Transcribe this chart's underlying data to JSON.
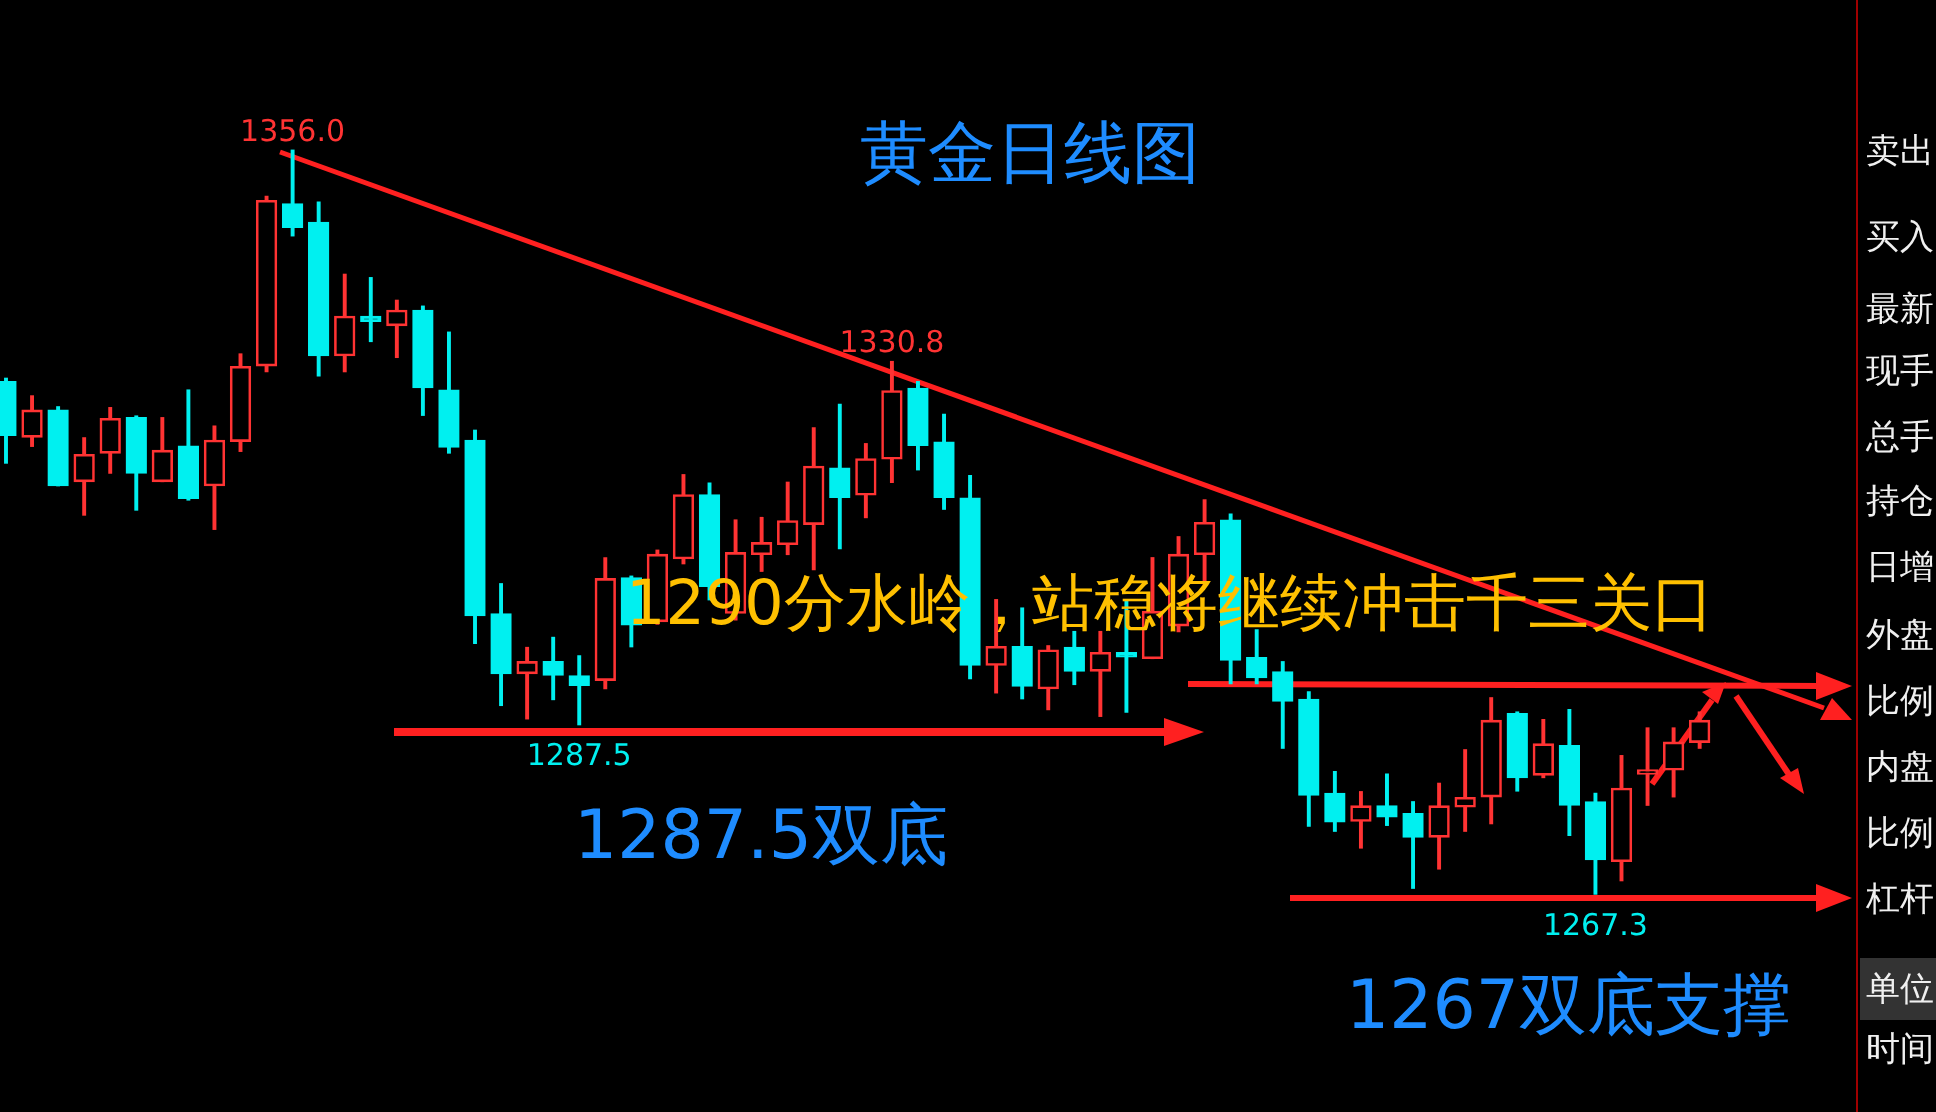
{
  "chart_data": {
    "type": "candlestick",
    "title": "黄金日线图",
    "categories": [
      null,
      null,
      null,
      null,
      null,
      null,
      null,
      null,
      null,
      null,
      null,
      null,
      null,
      null,
      null,
      null,
      null,
      null,
      null,
      null,
      null,
      null,
      null,
      null,
      null,
      null,
      null,
      null,
      null,
      null,
      null,
      null,
      null,
      null,
      null,
      null,
      null,
      null,
      null,
      null,
      null,
      null,
      null,
      null,
      null,
      null,
      null,
      null,
      null,
      null,
      null,
      null,
      null,
      null,
      null,
      null,
      null,
      null,
      null,
      null,
      null,
      null,
      null,
      null,
      null,
      null
    ],
    "ohlc": [
      [
        1328.4,
        1328.8,
        1318.7,
        1322.0
      ],
      [
        1321.8,
        1326.7,
        1320.7,
        1325.0
      ],
      [
        1325.0,
        1325.4,
        1316.0,
        1316.0
      ],
      [
        1316.5,
        1321.7,
        1312.5,
        1319.7
      ],
      [
        1319.9,
        1325.3,
        1317.5,
        1324.0
      ],
      [
        1324.1,
        1324.3,
        1313.1,
        1317.5
      ],
      [
        1316.5,
        1324.1,
        1316.5,
        1320.2
      ],
      [
        1320.7,
        1327.4,
        1314.3,
        1314.5
      ],
      [
        1316.0,
        1323.1,
        1310.8,
        1321.4
      ],
      [
        1321.3,
        1331.7,
        1320.1,
        1330.2
      ],
      [
        1330.3,
        1350.5,
        1329.6,
        1350.0
      ],
      [
        1349.6,
        1356.0,
        1345.8,
        1346.8
      ],
      [
        1347.4,
        1349.8,
        1329.1,
        1331.5
      ],
      [
        1331.5,
        1341.2,
        1329.6,
        1336.2
      ],
      [
        1336.2,
        1340.8,
        1333.2,
        1335.6
      ],
      [
        1335.1,
        1338.1,
        1331.3,
        1336.9
      ],
      [
        1336.9,
        1337.4,
        1324.4,
        1327.7
      ],
      [
        1327.4,
        1334.3,
        1319.9,
        1320.6
      ],
      [
        1321.4,
        1322.6,
        1297.2,
        1300.5
      ],
      [
        1300.7,
        1304.3,
        1289.8,
        1293.6
      ],
      [
        1293.6,
        1296.7,
        1288.2,
        1295.0
      ],
      [
        1295.0,
        1297.9,
        1290.5,
        1293.4
      ],
      [
        1293.3,
        1295.7,
        1287.5,
        1292.2
      ],
      [
        1292.8,
        1307.4,
        1291.8,
        1304.9
      ],
      [
        1305.0,
        1305.2,
        1296.8,
        1299.4
      ],
      [
        1299.8,
        1308.3,
        1299.5,
        1307.8
      ],
      [
        1307.3,
        1317.3,
        1306.7,
        1314.9
      ],
      [
        1314.9,
        1316.3,
        1302.4,
        1304.0
      ],
      [
        1300.8,
        1311.9,
        1300.0,
        1308.0
      ],
      [
        1307.8,
        1312.2,
        1305.8,
        1309.2
      ],
      [
        1309.0,
        1316.4,
        1307.8,
        1311.8
      ],
      [
        1311.4,
        1322.9,
        1306.0,
        1318.3
      ],
      [
        1318.1,
        1325.7,
        1308.5,
        1314.6
      ],
      [
        1314.9,
        1321.0,
        1312.2,
        1319.2
      ],
      [
        1319.2,
        1330.8,
        1316.4,
        1327.3
      ],
      [
        1327.6,
        1328.4,
        1317.9,
        1320.8
      ],
      [
        1321.2,
        1324.5,
        1313.2,
        1314.6
      ],
      [
        1314.5,
        1317.2,
        1293.0,
        1294.6
      ],
      [
        1294.6,
        1302.4,
        1291.3,
        1296.8
      ],
      [
        1296.8,
        1301.4,
        1290.6,
        1292.1
      ],
      [
        1291.8,
        1296.9,
        1289.3,
        1296.4
      ],
      [
        1296.7,
        1298.6,
        1292.3,
        1293.9
      ],
      [
        1293.9,
        1298.6,
        1288.5,
        1296.1
      ],
      [
        1296.1,
        1302.4,
        1289.0,
        1295.6
      ],
      [
        1295.4,
        1307.4,
        1295.4,
        1301.0
      ],
      [
        1299.3,
        1309.9,
        1298.6,
        1307.8
      ],
      [
        1307.8,
        1314.3,
        1304.2,
        1311.6
      ],
      [
        1311.9,
        1312.6,
        1292.4,
        1295.2
      ],
      [
        1295.5,
        1298.8,
        1292.4,
        1293.1
      ],
      [
        1293.8,
        1295.0,
        1284.7,
        1290.3
      ],
      [
        1290.5,
        1291.4,
        1275.4,
        1279.1
      ],
      [
        1279.3,
        1281.9,
        1274.8,
        1275.9
      ],
      [
        1276.0,
        1279.5,
        1272.8,
        1277.8
      ],
      [
        1277.8,
        1281.6,
        1275.5,
        1276.5
      ],
      [
        1276.9,
        1278.3,
        1268.0,
        1274.1
      ],
      [
        1274.1,
        1280.5,
        1270.3,
        1277.8
      ],
      [
        1277.7,
        1284.5,
        1274.8,
        1278.8
      ],
      [
        1278.9,
        1290.7,
        1275.7,
        1288.0
      ],
      [
        1288.8,
        1289.0,
        1279.6,
        1281.2
      ],
      [
        1281.5,
        1288.1,
        1281.2,
        1285.2
      ],
      [
        1285.0,
        1289.3,
        1274.3,
        1277.9
      ],
      [
        1278.3,
        1279.3,
        1267.3,
        1271.4
      ],
      [
        1271.2,
        1283.8,
        1268.9,
        1279.9
      ],
      [
        1281.6,
        1287.1,
        1277.9,
        1282.1
      ],
      [
        1282.1,
        1287.1,
        1278.9,
        1285.4
      ],
      [
        1285.4,
        1289.0,
        1284.7,
        1288.0
      ]
    ],
    "colors": [
      "#00f0f0",
      "#ff3333",
      "#00f0f0",
      "#ff3333",
      "#ff3333",
      "#00f0f0",
      "#ff3333",
      "#00f0f0",
      "#ff3333",
      "#ff3333",
      "#ff3333",
      "#00f0f0",
      "#00f0f0",
      "#ff3333",
      "#00f0f0",
      "#ff3333",
      "#00f0f0",
      "#00f0f0",
      "#00f0f0",
      "#00f0f0",
      "#ff3333",
      "#00f0f0",
      "#00f0f0",
      "#ff3333",
      "#00f0f0",
      "#ff3333",
      "#ff3333",
      "#00f0f0",
      "#ff3333",
      "#ff3333",
      "#ff3333",
      "#ff3333",
      "#00f0f0",
      "#ff3333",
      "#ff3333",
      "#00f0f0",
      "#00f0f0",
      "#00f0f0",
      "#ff3333",
      "#00f0f0",
      "#ff3333",
      "#00f0f0",
      "#ff3333",
      "#00f0f0",
      "#ff3333",
      "#ff3333",
      "#ff3333",
      "#00f0f0",
      "#00f0f0",
      "#00f0f0",
      "#00f0f0",
      "#00f0f0",
      "#ff3333",
      "#00f0f0",
      "#00f0f0",
      "#ff3333",
      "#ff3333",
      "#ff3333",
      "#00f0f0",
      "#ff3333",
      "#00f0f0",
      "#00f0f0",
      "#ff3333",
      "#ff3333",
      "#ff3333",
      "#ff3333"
    ],
    "annotations": [
      "1290分水岭，站稳将继续冲击千三关口",
      "1287.5双底",
      "1267双底支撑",
      {
        "text": "1356.0",
        "y": 1356.0
      },
      {
        "text": "1330.8",
        "y": 1330.8
      },
      {
        "text": "1287.5",
        "y": 1287.5
      },
      {
        "text": "1267.3",
        "y": 1267.3
      },
      "卖出",
      "买入",
      "最新",
      "现手",
      "总手",
      "持仓",
      "日增",
      "外盘",
      "比例",
      "内盘",
      "比例",
      "杠杆",
      "单位",
      "时间"
    ],
    "legend": false
  }
}
